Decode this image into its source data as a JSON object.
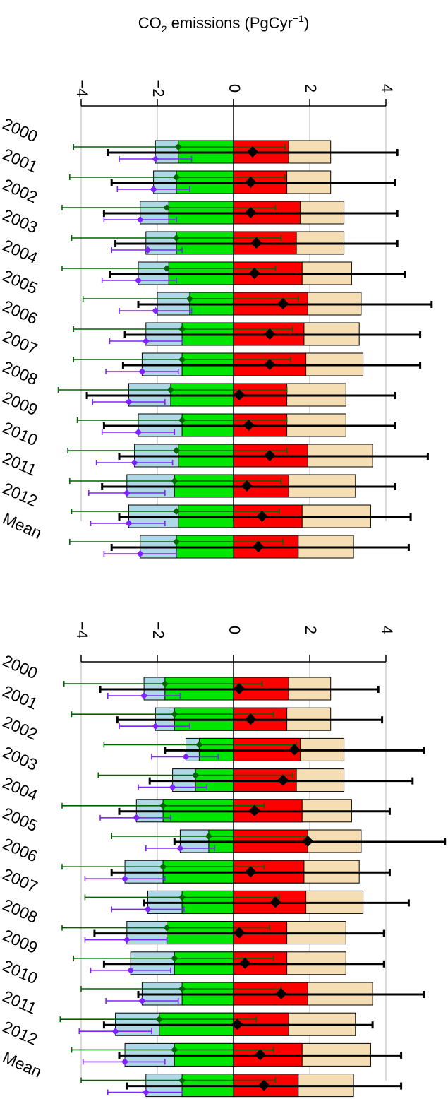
{
  "figure": {
    "title_main": "CO",
    "title_sub": "2",
    "title_rest": " emissions (PgCyr",
    "title_sup": "−1",
    "title_close": ")"
  },
  "colors": {
    "light_blue": "#aed8e6",
    "green": "#00e600",
    "red": "#ff0000",
    "wheat": "#f5deb3",
    "dark_green": "#006400",
    "purple": "#7f22ff",
    "black": "#000000",
    "grid": "#c8c8c8"
  },
  "chart_data": [
    {
      "type": "bar",
      "panel": "top",
      "xlim": [
        -4,
        4
      ],
      "ticks": [
        -4,
        -2,
        0,
        2,
        4
      ],
      "tick_labels": [
        "−4",
        "−2",
        "0",
        "2",
        "4"
      ],
      "grid": true,
      "orientation": "horizontal stacked with error bars",
      "categories": [
        "2000",
        "2001",
        "2002",
        "2003",
        "2004",
        "2005",
        "2006",
        "2007",
        "2008",
        "2009",
        "2010",
        "2011",
        "2012",
        "Mean"
      ],
      "series": [
        {
          "values_light_blue": [
            -2.05,
            -2.1,
            -2.45,
            -2.3,
            -2.5,
            -2.0,
            -2.3,
            -2.4,
            -2.75,
            -2.5,
            -2.6,
            -2.8,
            -2.75,
            -2.45
          ]
        },
        {
          "values_green": [
            -1.45,
            -1.5,
            -1.7,
            -1.5,
            -1.7,
            -1.15,
            -1.35,
            -1.35,
            -1.65,
            -1.35,
            -1.45,
            -1.55,
            -1.45,
            -1.5
          ]
        },
        {
          "values_red": [
            1.45,
            1.4,
            1.75,
            1.65,
            1.8,
            1.95,
            1.85,
            1.9,
            1.4,
            1.4,
            1.95,
            1.45,
            1.8,
            1.7
          ]
        },
        {
          "values_wheat": [
            2.55,
            2.55,
            2.9,
            2.9,
            3.1,
            3.35,
            3.3,
            3.4,
            2.95,
            2.95,
            3.65,
            3.2,
            3.6,
            3.15
          ]
        }
      ],
      "net_black": [
        {
          "v": 0.5,
          "lo": -3.3,
          "hi": 4.3
        },
        {
          "v": 0.45,
          "lo": -3.2,
          "hi": 4.25
        },
        {
          "v": 0.45,
          "lo": -3.4,
          "hi": 4.3
        },
        {
          "v": 0.6,
          "lo": -3.1,
          "hi": 4.3
        },
        {
          "v": 0.55,
          "lo": -3.25,
          "hi": 4.5
        },
        {
          "v": 1.3,
          "lo": -2.5,
          "hi": 5.2
        },
        {
          "v": 0.95,
          "lo": -2.85,
          "hi": 4.9
        },
        {
          "v": 0.95,
          "lo": -2.9,
          "hi": 4.9
        },
        {
          "v": 0.15,
          "lo": -3.85,
          "hi": 4.25
        },
        {
          "v": 0.4,
          "lo": -3.4,
          "hi": 4.25
        },
        {
          "v": 0.95,
          "lo": -3.0,
          "hi": 5.1
        },
        {
          "v": 0.35,
          "lo": -3.45,
          "hi": 4.25
        },
        {
          "v": 0.75,
          "lo": -3.0,
          "hi": 4.65
        },
        {
          "v": 0.65,
          "lo": -3.2,
          "hi": 4.6
        }
      ],
      "green_markers": [
        {
          "v": -1.45,
          "lo": -4.2,
          "hi": 1.35
        },
        {
          "v": -1.5,
          "lo": -4.3,
          "hi": 1.35
        },
        {
          "v": -1.75,
          "lo": -4.5,
          "hi": 1.1
        },
        {
          "v": -1.5,
          "lo": -4.25,
          "hi": 1.25
        },
        {
          "v": -1.75,
          "lo": -4.5,
          "hi": 1.1
        },
        {
          "v": -1.15,
          "lo": -3.95,
          "hi": 1.7
        },
        {
          "v": -1.35,
          "lo": -4.2,
          "hi": 1.55
        },
        {
          "v": -1.35,
          "lo": -4.2,
          "hi": 1.5
        },
        {
          "v": -1.65,
          "lo": -4.6,
          "hi": 1.4
        },
        {
          "v": -1.35,
          "lo": -4.1,
          "hi": 1.4
        },
        {
          "v": -1.5,
          "lo": -4.35,
          "hi": 1.4
        },
        {
          "v": -1.55,
          "lo": -4.3,
          "hi": 1.25
        },
        {
          "v": -1.5,
          "lo": -4.25,
          "hi": 1.2
        },
        {
          "v": -1.5,
          "lo": -4.3,
          "hi": 1.3
        }
      ],
      "purple_markers": [
        {
          "v": -2.05,
          "lo": -3.0,
          "hi": -1.1
        },
        {
          "v": -2.1,
          "lo": -3.05,
          "hi": -1.15
        },
        {
          "v": -2.45,
          "lo": -3.4,
          "hi": -1.5
        },
        {
          "v": -2.25,
          "lo": -3.2,
          "hi": -1.35
        },
        {
          "v": -2.5,
          "lo": -3.45,
          "hi": -1.5
        },
        {
          "v": -2.05,
          "lo": -3.0,
          "hi": -1.1
        },
        {
          "v": -2.3,
          "lo": -3.25,
          "hi": -1.35
        },
        {
          "v": -2.4,
          "lo": -3.35,
          "hi": -1.45
        },
        {
          "v": -2.75,
          "lo": -3.7,
          "hi": -1.8
        },
        {
          "v": -2.5,
          "lo": -3.45,
          "hi": -1.55
        },
        {
          "v": -2.6,
          "lo": -3.6,
          "hi": -1.6
        },
        {
          "v": -2.8,
          "lo": -3.8,
          "hi": -1.8
        },
        {
          "v": -2.75,
          "lo": -3.75,
          "hi": -1.8
        },
        {
          "v": -2.45,
          "lo": -3.4,
          "hi": -1.5
        }
      ]
    },
    {
      "type": "bar",
      "panel": "bottom",
      "xlim": [
        -4,
        4
      ],
      "ticks": [
        -4,
        -2,
        0,
        2,
        4
      ],
      "tick_labels": [
        "−4",
        "−2",
        "0",
        "2",
        "4"
      ],
      "grid": true,
      "orientation": "horizontal stacked with error bars",
      "categories": [
        "2000",
        "2001",
        "2002",
        "2003",
        "2004",
        "2005",
        "2006",
        "2007",
        "2008",
        "2009",
        "2010",
        "2011",
        "2012",
        "Mean"
      ],
      "series": [
        {
          "values_light_blue": [
            -2.35,
            -2.05,
            -1.25,
            -1.6,
            -2.55,
            -1.4,
            -2.85,
            -2.25,
            -2.8,
            -2.7,
            -2.4,
            -3.1,
            -2.85,
            -2.3
          ]
        },
        {
          "values_green": [
            -1.8,
            -1.55,
            -0.9,
            -1.0,
            -1.85,
            -0.65,
            -1.85,
            -1.35,
            -1.75,
            -1.55,
            -1.35,
            -1.95,
            -1.55,
            -1.35
          ]
        },
        {
          "values_red": [
            1.45,
            1.4,
            1.75,
            1.65,
            1.8,
            1.95,
            1.85,
            1.9,
            1.4,
            1.4,
            1.95,
            1.45,
            1.8,
            1.7
          ]
        },
        {
          "values_wheat": [
            2.55,
            2.55,
            2.9,
            2.9,
            3.1,
            3.35,
            3.3,
            3.4,
            2.95,
            2.95,
            3.65,
            3.2,
            3.6,
            3.15
          ]
        }
      ],
      "net_black": [
        {
          "v": 0.15,
          "lo": -3.5,
          "hi": 3.8
        },
        {
          "v": 0.45,
          "lo": -3.05,
          "hi": 3.9
        },
        {
          "v": 1.6,
          "lo": -1.8,
          "hi": 5.0
        },
        {
          "v": 1.3,
          "lo": -2.2,
          "hi": 4.7
        },
        {
          "v": 0.55,
          "lo": -3.0,
          "hi": 4.1
        },
        {
          "v": 1.95,
          "lo": -1.55,
          "hi": 5.55
        },
        {
          "v": 0.45,
          "lo": -3.2,
          "hi": 4.1
        },
        {
          "v": 1.1,
          "lo": -2.35,
          "hi": 4.6
        },
        {
          "v": 0.15,
          "lo": -3.65,
          "hi": 3.95
        },
        {
          "v": 0.3,
          "lo": -3.4,
          "hi": 3.95
        },
        {
          "v": 1.25,
          "lo": -2.5,
          "hi": 5.0
        },
        {
          "v": 0.1,
          "lo": -3.4,
          "hi": 3.65
        },
        {
          "v": 0.7,
          "lo": -3.0,
          "hi": 4.4
        },
        {
          "v": 0.8,
          "lo": -2.8,
          "hi": 4.4
        }
      ],
      "green_markers": [
        {
          "v": -1.8,
          "lo": -4.45,
          "hi": 0.75
        },
        {
          "v": -1.55,
          "lo": -4.25,
          "hi": 1.05
        },
        {
          "v": -0.9,
          "lo": -3.4,
          "hi": 1.65
        },
        {
          "v": -1.0,
          "lo": -3.55,
          "hi": 1.55
        },
        {
          "v": -1.85,
          "lo": -4.5,
          "hi": 0.8
        },
        {
          "v": -0.65,
          "lo": -3.2,
          "hi": 1.95
        },
        {
          "v": -1.85,
          "lo": -4.5,
          "hi": 0.8
        },
        {
          "v": -1.35,
          "lo": -3.9,
          "hi": 1.2
        },
        {
          "v": -1.75,
          "lo": -4.5,
          "hi": 0.95
        },
        {
          "v": -1.55,
          "lo": -4.2,
          "hi": 1.05
        },
        {
          "v": -1.35,
          "lo": -4.0,
          "hi": 1.25
        },
        {
          "v": -1.95,
          "lo": -4.55,
          "hi": 0.6
        },
        {
          "v": -1.55,
          "lo": -4.25,
          "hi": 1.05
        },
        {
          "v": -1.35,
          "lo": -4.0,
          "hi": 1.1
        }
      ],
      "purple_markers": [
        {
          "v": -2.35,
          "lo": -3.3,
          "hi": -1.4
        },
        {
          "v": -2.05,
          "lo": -3.0,
          "hi": -1.15
        },
        {
          "v": -1.25,
          "lo": -2.15,
          "hi": -0.4
        },
        {
          "v": -1.6,
          "lo": -2.5,
          "hi": -0.7
        },
        {
          "v": -2.55,
          "lo": -3.5,
          "hi": -1.65
        },
        {
          "v": -1.4,
          "lo": -2.3,
          "hi": -0.5
        },
        {
          "v": -2.85,
          "lo": -3.9,
          "hi": -1.8
        },
        {
          "v": -2.25,
          "lo": -3.2,
          "hi": -1.3
        },
        {
          "v": -2.8,
          "lo": -3.9,
          "hi": -1.75
        },
        {
          "v": -2.7,
          "lo": -3.75,
          "hi": -1.65
        },
        {
          "v": -2.4,
          "lo": -3.35,
          "hi": -1.45
        },
        {
          "v": -3.1,
          "lo": -4.05,
          "hi": -2.15
        },
        {
          "v": -2.85,
          "lo": -3.95,
          "hi": -1.8
        },
        {
          "v": -2.3,
          "lo": -3.3,
          "hi": -1.35
        }
      ]
    }
  ]
}
